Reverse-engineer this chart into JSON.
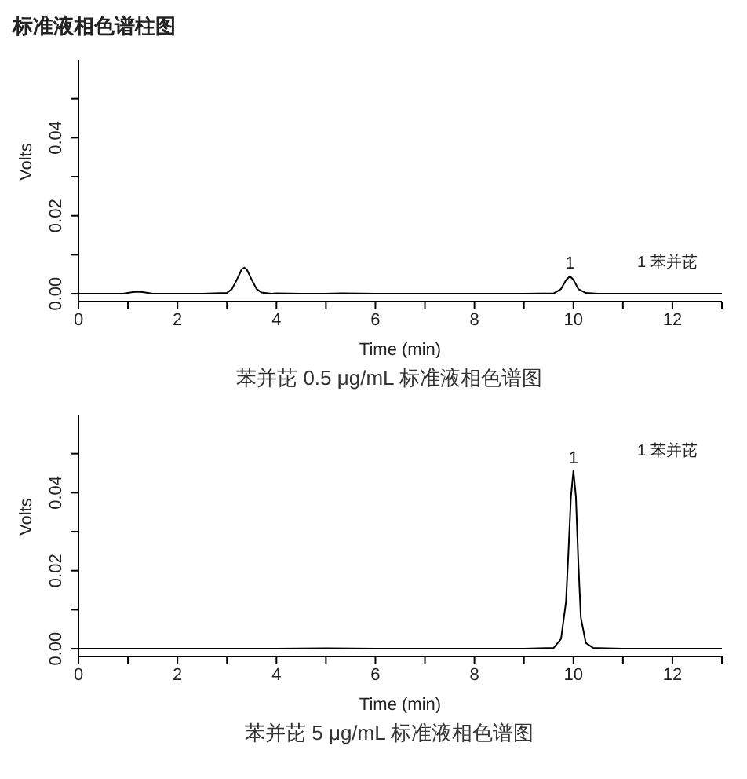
{
  "chart_data": [
    {
      "type": "line",
      "title": "标准液相色谱柱图",
      "xlabel": "Time (min)",
      "ylabel": "Volts",
      "xlim": [
        0,
        13
      ],
      "xticks": [
        0,
        {
          "value": 1,
          "label": null
        },
        2,
        {
          "value": 3,
          "label": null
        },
        4,
        {
          "value": 5,
          "label": null
        },
        6,
        {
          "value": 7,
          "label": null
        },
        8,
        {
          "value": 9,
          "label": null
        },
        10,
        {
          "value": 11,
          "label": null
        },
        12,
        {
          "value": 13,
          "label": null
        }
      ],
      "ylim": [
        -0.002,
        0.06
      ],
      "yticks": [
        {
          "value": 0,
          "label": "0.00"
        },
        {
          "value": 0.01,
          "label": null
        },
        {
          "value": 0.02,
          "label": "0.02"
        },
        {
          "value": 0.03,
          "label": null
        },
        {
          "value": 0.04,
          "label": "0.04"
        },
        {
          "value": 0.05,
          "label": null
        }
      ],
      "series": [
        {
          "color": "#000000",
          "x": [
            0,
            0.5,
            0.9,
            1.1,
            1.2,
            1.3,
            1.5,
            2.0,
            2.5,
            3.0,
            3.1,
            3.2,
            3.3,
            3.35,
            3.4,
            3.5,
            3.6,
            3.7,
            3.9,
            4.0,
            4.5,
            5.0,
            5.3,
            6,
            7,
            8,
            9,
            9.6,
            9.75,
            9.85,
            9.93,
            10.0,
            10.1,
            10.25,
            10.5,
            11,
            12,
            13
          ],
          "values": [
            0,
            0,
            0,
            0.0004,
            0.0005,
            0.0004,
            0,
            0,
            0,
            0.0002,
            0.0012,
            0.0036,
            0.0063,
            0.0067,
            0.0062,
            0.0036,
            0.0012,
            0.0003,
            0,
            0.0001,
            0,
            0,
            0.0001,
            0,
            0,
            0,
            0,
            0.0001,
            0.0012,
            0.0035,
            0.0045,
            0.0036,
            0.0012,
            0.0002,
            0,
            0,
            0,
            0
          ]
        }
      ],
      "annotations": [
        {
          "text": "1",
          "x": 9.93,
          "y": 0.0045
        },
        "1 苯并芘",
        "苯并芘 0.5 μg/mL 标准液相色谱图"
      ]
    },
    {
      "type": "line",
      "xlabel": "Time (min)",
      "ylabel": "Volts",
      "xlim": [
        0,
        13
      ],
      "xticks": [
        0,
        {
          "value": 1,
          "label": null
        },
        2,
        {
          "value": 3,
          "label": null
        },
        4,
        {
          "value": 5,
          "label": null
        },
        6,
        {
          "value": 7,
          "label": null
        },
        8,
        {
          "value": 9,
          "label": null
        },
        10,
        {
          "value": 11,
          "label": null
        },
        12,
        {
          "value": 13,
          "label": null
        }
      ],
      "ylim": [
        -0.002,
        0.06
      ],
      "yticks": [
        {
          "value": 0,
          "label": "0.00"
        },
        {
          "value": 0.01,
          "label": null
        },
        {
          "value": 0.02,
          "label": "0.02"
        },
        {
          "value": 0.03,
          "label": null
        },
        {
          "value": 0.04,
          "label": "0.04"
        },
        {
          "value": 0.05,
          "label": null
        }
      ],
      "series": [
        {
          "color": "#000000",
          "x": [
            0,
            1,
            2,
            3,
            4,
            5,
            6,
            7,
            8,
            9,
            9.6,
            9.75,
            9.85,
            9.9,
            9.95,
            10.0,
            10.05,
            10.1,
            10.15,
            10.25,
            10.4,
            11,
            12,
            13
          ],
          "values": [
            0,
            0,
            0,
            0,
            0,
            0.0001,
            0,
            0,
            0,
            0,
            0.0002,
            0.0025,
            0.012,
            0.025,
            0.039,
            0.0456,
            0.039,
            0.022,
            0.008,
            0.0015,
            0.0002,
            0,
            0,
            0
          ]
        }
      ],
      "annotations": [
        {
          "text": "1",
          "x": 10.0,
          "y": 0.0456
        },
        "1 苯并芘",
        "苯并芘 5 μg/mL 标准液相色谱图"
      ]
    }
  ]
}
